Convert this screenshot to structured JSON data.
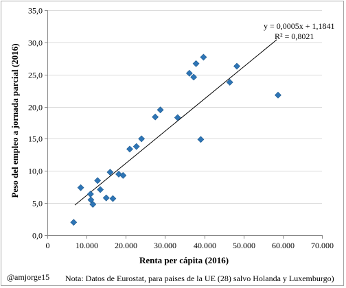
{
  "chart_data": {
    "type": "scatter",
    "title": "",
    "xlabel": "Renta per cápita  (2016)",
    "ylabel": "Peso del empleo  a jornada parcial  (2016)",
    "xlim": [
      0,
      70000
    ],
    "ylim": [
      0,
      35
    ],
    "x_ticks": [
      0,
      10000,
      20000,
      30000,
      40000,
      50000,
      60000,
      70000
    ],
    "x_tick_labels": [
      "0",
      "10.000",
      "20.000",
      "30.000",
      "40.000",
      "50.000",
      "60.000",
      "70.000"
    ],
    "y_ticks": [
      0,
      5,
      10,
      15,
      20,
      25,
      30,
      35
    ],
    "y_tick_labels": [
      "0,0",
      "5,0",
      "10,0",
      "15,0",
      "20,0",
      "25,0",
      "30,0",
      "35,0"
    ],
    "grid": "horizontal",
    "legend": "none",
    "marker_color": "#2e75b6",
    "points": [
      {
        "x": 6700,
        "y": 2.0
      },
      {
        "x": 8500,
        "y": 7.4
      },
      {
        "x": 11000,
        "y": 6.4
      },
      {
        "x": 11100,
        "y": 5.5
      },
      {
        "x": 11600,
        "y": 4.8
      },
      {
        "x": 12800,
        "y": 8.5
      },
      {
        "x": 13500,
        "y": 7.1
      },
      {
        "x": 15000,
        "y": 5.8
      },
      {
        "x": 16000,
        "y": 9.8
      },
      {
        "x": 16700,
        "y": 5.7
      },
      {
        "x": 18200,
        "y": 9.5
      },
      {
        "x": 19300,
        "y": 9.3
      },
      {
        "x": 21000,
        "y": 13.4
      },
      {
        "x": 22700,
        "y": 13.8
      },
      {
        "x": 24000,
        "y": 15.0
      },
      {
        "x": 27500,
        "y": 18.4
      },
      {
        "x": 28800,
        "y": 19.5
      },
      {
        "x": 33200,
        "y": 18.3
      },
      {
        "x": 36200,
        "y": 25.2
      },
      {
        "x": 37300,
        "y": 24.6
      },
      {
        "x": 37900,
        "y": 26.7
      },
      {
        "x": 39100,
        "y": 14.9
      },
      {
        "x": 39800,
        "y": 27.7
      },
      {
        "x": 46500,
        "y": 23.8
      },
      {
        "x": 48300,
        "y": 26.3
      },
      {
        "x": 58800,
        "y": 21.8
      }
    ],
    "trendline": {
      "slope": 0.0005,
      "intercept": 1.1841,
      "x_range": [
        7000,
        58500
      ],
      "equation_label": "y = 0,0005x   + 1,1841",
      "r2_label": "R² = 0,8021"
    }
  },
  "footer": {
    "handle": "@amjorge15",
    "note": "Nota: Datos de Eurostat, para paises de la UE (28) salvo Holanda y Luxemburgo)"
  }
}
